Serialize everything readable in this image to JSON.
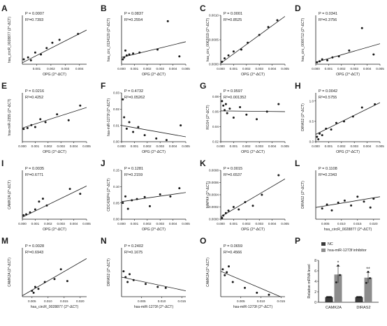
{
  "figure": {
    "colors": {
      "axis": "#1a1a1a",
      "point": "#1a1a1a",
      "fit_line": "#1a1a1a",
      "nc_bar": "#3a3a3a",
      "inhibitor_bar": "#8c8c8c"
    }
  },
  "chart_data": [
    {
      "letter": "A",
      "type": "scatter",
      "p_text": "P = 0.0007",
      "r2_text": "R²=0.7393",
      "xlabel": "OPG (2^-ΔCT)",
      "ylabel": "hsa_circR_0028877 (2^-ΔCT)",
      "x_ticks": [
        "0.001",
        "0.002",
        "0.003",
        "0.004"
      ],
      "xlim": [
        0,
        0.0045
      ],
      "y_ticks": [],
      "ylim": [
        0,
        1
      ],
      "x": [
        0.0001,
        0.0004,
        0.0006,
        0.0009,
        0.0013,
        0.0017,
        0.0021,
        0.0026,
        0.0039
      ],
      "y": [
        0.1,
        0.14,
        0.08,
        0.24,
        0.2,
        0.33,
        0.44,
        0.5,
        0.62
      ],
      "fit": [
        [
          0,
          0.03
        ],
        [
          0.0045,
          0.7
        ]
      ]
    },
    {
      "letter": "B",
      "type": "scatter",
      "p_text": "P = 0.0837",
      "r2_text": "R²=0.2554",
      "xlabel": "OPG (2^-ΔCT)",
      "ylabel": "hsa_circ_0134120 (2^-ΔCT)",
      "x_ticks": [
        "0.000",
        "0.001",
        "0.002",
        "0.003",
        "0.004",
        "0.005"
      ],
      "xlim": [
        0,
        0.005
      ],
      "y_ticks": [],
      "ylim": [
        0,
        1
      ],
      "x": [
        0.0001,
        0.0002,
        0.0003,
        0.0004,
        0.0006,
        0.0009,
        0.0014,
        0.0028,
        0.0036,
        0.0045
      ],
      "y": [
        0.1,
        0.14,
        0.28,
        0.18,
        0.2,
        0.22,
        0.24,
        0.3,
        0.88,
        0.16
      ],
      "fit": [
        [
          0,
          0.14
        ],
        [
          0.005,
          0.46
        ]
      ]
    },
    {
      "letter": "C",
      "type": "scatter",
      "p_text": "P = 0.0001",
      "r2_text": "R²=0.8525",
      "xlabel": "OPG (2^-ΔCT)",
      "ylabel": "hsa_circ_0062019 (2^-ΔCT)",
      "x_ticks": [
        "0.000",
        "0.001",
        "0.002",
        "0.003",
        "0.004",
        "0.005"
      ],
      "ylim": [
        0,
        0.001
      ],
      "y_ticks": [
        "0.0000",
        "0.0005",
        "0.0010"
      ],
      "xlim": [
        0,
        0.005
      ],
      "x": [
        0.0001,
        0.0003,
        0.0006,
        0.001,
        0.0016,
        0.0021,
        0.003,
        0.0037,
        0.0044
      ],
      "y": [
        5e-05,
        0.00012,
        0.00018,
        0.00026,
        0.0003,
        0.00044,
        0.0006,
        0.00076,
        0.0009
      ],
      "fit": [
        [
          0,
          2e-05
        ],
        [
          0.005,
          0.00098
        ]
      ]
    },
    {
      "letter": "D",
      "type": "scatter",
      "p_text": "P = 0.0341",
      "r2_text": "R²=0.3756",
      "xlabel": "OPG (2^-ΔCT)",
      "ylabel": "hsa_circ_0000712 (2^-ΔCT)",
      "x_ticks": [
        "0.000",
        "0.001",
        "0.002",
        "0.003",
        "0.004",
        "0.005"
      ],
      "xlim": [
        0,
        0.005
      ],
      "y_ticks": [],
      "ylim": [
        0,
        1
      ],
      "x": [
        0.0001,
        0.0003,
        0.0005,
        0.0009,
        0.0013,
        0.0018,
        0.0026,
        0.0036,
        0.0045
      ],
      "y": [
        0.04,
        0.06,
        0.1,
        0.08,
        0.14,
        0.16,
        0.28,
        0.74,
        0.2
      ],
      "fit": [
        [
          0,
          0.04
        ],
        [
          0.005,
          0.42
        ]
      ]
    },
    {
      "letter": "E",
      "type": "scatter",
      "p_text": "P = 0.0216",
      "r2_text": "R²=0.4252",
      "xlabel": "OPG (2^-ΔCT)",
      "ylabel": "hsa-miR-2355 (2^-ΔCT)",
      "x_ticks": [
        "0.000",
        "0.001",
        "0.002",
        "0.003",
        "0.004",
        "0.005"
      ],
      "xlim": [
        0,
        0.005
      ],
      "y_ticks": [],
      "ylim": [
        0,
        1
      ],
      "x": [
        0.0001,
        0.0004,
        0.0007,
        0.001,
        0.0014,
        0.0018,
        0.0027,
        0.0036,
        0.0045
      ],
      "y": [
        0.26,
        0.28,
        0.34,
        0.3,
        0.46,
        0.4,
        0.56,
        0.44,
        0.74
      ],
      "fit": [
        [
          0,
          0.28
        ],
        [
          0.005,
          0.7
        ]
      ]
    },
    {
      "letter": "F",
      "type": "scatter",
      "p_text": "P = 0.4732",
      "r2_text": "R²=0.05262",
      "xlabel": "OPG (2^-ΔCT)",
      "ylabel": "hsa-miR-1273f (2^-ΔCT)",
      "x_ticks": [
        "0.000",
        "0.001",
        "0.002",
        "0.003",
        "0.004",
        "0.005"
      ],
      "xlim": [
        0,
        0.005
      ],
      "y_ticks": [
        "0.00",
        "0.01",
        "0.02",
        "0.03"
      ],
      "ylim": [
        0,
        0.03
      ],
      "x": [
        0.0001,
        0.0002,
        0.0004,
        0.0006,
        0.0009,
        0.0013,
        0.0018,
        0.0027,
        0.0035,
        0.0046
      ],
      "y": [
        0.026,
        0.015,
        0.008,
        0.012,
        0.006,
        0.009,
        0.004,
        0.002,
        0.001,
        0.01
      ],
      "fit": [
        [
          0,
          0.01
        ],
        [
          0.005,
          0.003
        ]
      ]
    },
    {
      "letter": "G",
      "type": "scatter",
      "p_text": "P = 0.9597",
      "r2_text": "R²=0.001352",
      "xlabel": "OPG (2^-ΔCT)",
      "ylabel": "RGS4 (2^-ΔCT)",
      "x_ticks": [
        "0.000",
        "0.001",
        "0.002",
        "0.003",
        "0.004",
        "0.005"
      ],
      "xlim": [
        0,
        0.005
      ],
      "y_ticks": [
        "0.02",
        "0.04",
        "0.06",
        "0.08"
      ],
      "ylim": [
        0.02,
        0.085
      ],
      "x": [
        0.0001,
        0.0002,
        0.0003,
        0.0004,
        0.0005,
        0.0007,
        0.001,
        0.0015,
        0.002,
        0.0028,
        0.0036,
        0.0045
      ],
      "y": [
        0.074,
        0.068,
        0.062,
        0.07,
        0.058,
        0.064,
        0.052,
        0.066,
        0.056,
        0.05,
        0.06,
        0.07
      ],
      "fit": [
        [
          0,
          0.061
        ],
        [
          0.005,
          0.06
        ]
      ]
    },
    {
      "letter": "H",
      "type": "scatter",
      "p_text": "P = 0.0042",
      "r2_text": "R²=0.5755",
      "xlabel": "OPG (2^-ΔCT)",
      "ylabel": "DIRAS2 (2^-ΔCT)",
      "x_ticks": [
        "0.000",
        "0.001",
        "0.002",
        "0.003",
        "0.004",
        "0.005"
      ],
      "xlim": [
        0,
        0.005
      ],
      "y_ticks": [
        "0.0",
        "0.5",
        "1.0"
      ],
      "ylim": [
        0,
        1.2
      ],
      "x": [
        0.0001,
        0.0002,
        0.0003,
        0.0005,
        0.0008,
        0.0012,
        0.0016,
        0.0022,
        0.0029,
        0.0036,
        0.0046
      ],
      "y": [
        0.12,
        0.06,
        0.2,
        0.16,
        0.32,
        0.3,
        0.46,
        0.5,
        0.62,
        0.84,
        0.92
      ],
      "fit": [
        [
          0,
          0.18
        ],
        [
          0.005,
          0.96
        ]
      ]
    },
    {
      "letter": "I",
      "type": "scatter",
      "p_text": "P = 0.0035",
      "r2_text": "R²=0.6771",
      "xlabel": "OPG (2^-ΔCT)",
      "ylabel": "CAMK2A (2^-ΔCT)",
      "x_ticks": [
        "0.000",
        "0.001",
        "0.002",
        "0.003",
        "0.004",
        "0.005"
      ],
      "xlim": [
        0,
        0.005
      ],
      "y_ticks": [],
      "ylim": [
        0,
        1
      ],
      "x": [
        0.0001,
        0.0003,
        0.0006,
        0.001,
        0.0013,
        0.0016,
        0.0019,
        0.0037,
        0.0045
      ],
      "y": [
        0.08,
        0.1,
        0.14,
        0.2,
        0.36,
        0.42,
        0.28,
        0.62,
        0.52
      ],
      "fit": [
        [
          0,
          0.04
        ],
        [
          0.005,
          0.68
        ]
      ]
    },
    {
      "letter": "J",
      "type": "scatter",
      "p_text": "P = 0.1281",
      "r2_text": "R²=0.2159",
      "xlabel": "OPG (2^-ΔCT)",
      "ylabel": "CDC42EP4 (2^-ΔCT)",
      "x_ticks": [
        "0.000",
        "0.001",
        "0.002",
        "0.003",
        "0.004",
        "0.005"
      ],
      "xlim": [
        0,
        0.005
      ],
      "y_ticks": [
        "0.00",
        "0.05",
        "0.10",
        "0.15"
      ],
      "ylim": [
        0,
        0.15
      ],
      "x": [
        0.0001,
        0.0003,
        0.0005,
        0.0008,
        0.0012,
        0.0018,
        0.0022,
        0.003,
        0.0038,
        0.0045
      ],
      "y": [
        0.05,
        0.07,
        0.032,
        0.058,
        0.062,
        0.068,
        0.04,
        0.076,
        0.07,
        0.095
      ],
      "fit": [
        [
          0,
          0.054
        ],
        [
          0.005,
          0.082
        ]
      ]
    },
    {
      "letter": "K",
      "type": "scatter",
      "p_text": "P = 0.0015",
      "r2_text": "R²=0.6537",
      "xlabel": "OPG (2^-ΔCT)",
      "ylabel": "MAPK4 (2^-ΔCT)",
      "x_ticks": [
        "0.000",
        "0.001",
        "0.002",
        "0.003",
        "0.004",
        "0.005"
      ],
      "xlim": [
        0,
        0.005
      ],
      "y_ticks": [
        "0.0000",
        "0.0002",
        "0.0004",
        "0.0006",
        "0.0008"
      ],
      "ylim": [
        0,
        0.0008
      ],
      "x": [
        0.0001,
        0.0002,
        0.0004,
        0.0006,
        0.001,
        0.0014,
        0.0019,
        0.0025,
        0.0032,
        0.0045
      ],
      "y": [
        2e-05,
        6e-05,
        0.0001,
        0.00014,
        0.0002,
        0.00016,
        0.00028,
        0.00022,
        0.0004,
        0.00072
      ],
      "fit": [
        [
          0,
          4e-05
        ],
        [
          0.005,
          0.00066
        ]
      ]
    },
    {
      "letter": "L",
      "type": "scatter",
      "p_text": "P = 0.1108",
      "r2_text": "R²=0.2343",
      "xlabel": "hsa_circR_0028877 (2^-ΔCT)",
      "ylabel": "DIRAS2 (2^-ΔCT)",
      "x_ticks": [
        "0.005",
        "0.010",
        "0.015",
        "0.020"
      ],
      "xlim": [
        0.002,
        0.022
      ],
      "y_ticks": [],
      "ylim": [
        0,
        1
      ],
      "x": [
        0.004,
        0.0055,
        0.007,
        0.009,
        0.011,
        0.013,
        0.015,
        0.017,
        0.019,
        0.02
      ],
      "y": [
        0.22,
        0.3,
        0.18,
        0.34,
        0.38,
        0.28,
        0.46,
        0.36,
        0.24,
        0.42
      ],
      "fit": [
        [
          0.002,
          0.24
        ],
        [
          0.022,
          0.46
        ]
      ]
    },
    {
      "letter": "M",
      "type": "scatter",
      "p_text": "P = 0.0028",
      "r2_text": "R²=0.6943",
      "xlabel": "hsa_circR_0028877 (2^-ΔCT)",
      "ylabel": "CAMK2A (2^-ΔCT)",
      "x_ticks": [
        "0.005",
        "0.010",
        "0.015",
        "0.020"
      ],
      "xlim": [
        0.002,
        0.022
      ],
      "y_ticks": [],
      "ylim": [
        0,
        1
      ],
      "x": [
        0.005,
        0.0055,
        0.006,
        0.007,
        0.009,
        0.012,
        0.014,
        0.016
      ],
      "y": [
        0.12,
        0.08,
        0.2,
        0.16,
        0.3,
        0.36,
        0.56,
        0.32
      ],
      "fit": [
        [
          0.002,
          0.02
        ],
        [
          0.022,
          0.78
        ]
      ]
    },
    {
      "letter": "N",
      "type": "scatter",
      "p_text": "P = 0.2402",
      "r2_text": "R²=0.1675",
      "xlabel": "hsa-miR-1273f (2^-ΔCT)",
      "ylabel": "DIRAS2 (2^-ΔCT)",
      "x_ticks": [
        "0.005",
        "0.010",
        "0.015"
      ],
      "xlim": [
        0,
        0.016
      ],
      "y_ticks": [],
      "ylim": [
        0,
        1
      ],
      "x": [
        0.0005,
        0.001,
        0.0015,
        0.002,
        0.003,
        0.006,
        0.009,
        0.011
      ],
      "y": [
        0.52,
        0.4,
        0.3,
        0.46,
        0.34,
        0.26,
        0.2,
        0.18
      ],
      "fit": [
        [
          0,
          0.4
        ],
        [
          0.016,
          0.12
        ]
      ]
    },
    {
      "letter": "O",
      "type": "scatter",
      "p_text": "P = 0.0659",
      "r2_text": "R²=0.4566",
      "xlabel": "hsa-miR-1273f (2^-ΔCT)",
      "ylabel": "CAMK2A (2^-ΔCT)",
      "x_ticks": [
        "0.005",
        "0.010",
        "0.015"
      ],
      "xlim": [
        0,
        0.016
      ],
      "y_ticks": [],
      "ylim": [
        0,
        1
      ],
      "x": [
        0.0005,
        0.001,
        0.0015,
        0.002,
        0.003,
        0.006,
        0.009,
        0.012
      ],
      "y": [
        0.56,
        0.44,
        0.5,
        0.62,
        0.3,
        0.18,
        0.08,
        0.04
      ],
      "fit": [
        [
          0,
          0.52
        ],
        [
          0.016,
          -0.04
        ]
      ]
    },
    {
      "letter": "P",
      "type": "bar",
      "ylabel": "Relative mRNA level",
      "y_ticks": [
        "0",
        "2",
        "4",
        "6",
        "8"
      ],
      "ylim": [
        0,
        8
      ],
      "categories": [
        "CAMK2A",
        "DIRAS2"
      ],
      "series": [
        {
          "name": "NC",
          "values": [
            1.0,
            1.0
          ]
        },
        {
          "name": "hsa-miR-1273f inhibitor",
          "values": [
            5.3,
            4.7
          ]
        }
      ],
      "errors": [
        [
          0,
          0
        ],
        [
          1.6,
          1.0
        ]
      ],
      "replicates": [
        [
          [
            1.0,
            1.0,
            1.0
          ],
          [
            1.0,
            1.0,
            1.0
          ]
        ],
        [
          [
            3.8,
            7.0,
            5.2
          ],
          [
            3.7,
            5.8,
            4.6
          ]
        ]
      ],
      "significance": [
        "*",
        "**"
      ]
    }
  ]
}
